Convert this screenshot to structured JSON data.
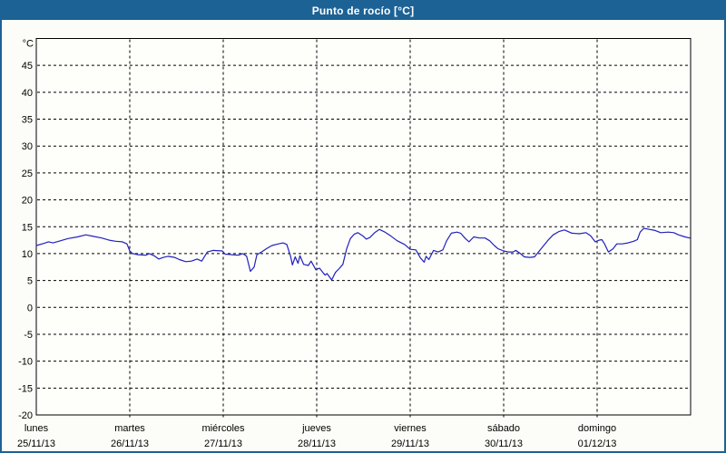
{
  "window": {
    "title": "Punto de rocío [°C]"
  },
  "colors": {
    "title_bar": "#1d6295",
    "title_text": "#ffffff",
    "page_border": "#1d6295",
    "background": "#fcfdf8",
    "plot_background": "#fefefb",
    "grid": "#000000",
    "axis_text": "#000000",
    "series": "#2121bd"
  },
  "chart_data": {
    "type": "line",
    "title": "Punto de rocío [°C]",
    "y_axis": {
      "unit_label": "°C",
      "min": -20,
      "max": 50,
      "grid_step": 5,
      "tick_labels": [
        45,
        40,
        35,
        30,
        25,
        20,
        15,
        10,
        5,
        0,
        -5,
        -10,
        -15,
        -20
      ]
    },
    "x_axis": {
      "days": [
        {
          "name": "lunes",
          "date": "25/11/13"
        },
        {
          "name": "martes",
          "date": "26/11/13"
        },
        {
          "name": "miércoles",
          "date": "27/11/13"
        },
        {
          "name": "jueves",
          "date": "28/11/13"
        },
        {
          "name": "viernes",
          "date": "29/11/13"
        },
        {
          "name": "sábado",
          "date": "30/11/13"
        },
        {
          "name": "domingo",
          "date": "01/12/13"
        }
      ]
    },
    "layout": {
      "grid": "dashed",
      "legend": false,
      "x_range_days": [
        0,
        7
      ]
    },
    "series": [
      {
        "name": "Punto de rocío",
        "color": "#2121bd",
        "points": [
          [
            0.0,
            11.5
          ],
          [
            0.08,
            11.9
          ],
          [
            0.13,
            12.2
          ],
          [
            0.18,
            12.0
          ],
          [
            0.24,
            12.3
          ],
          [
            0.34,
            12.8
          ],
          [
            0.44,
            13.1
          ],
          [
            0.53,
            13.5
          ],
          [
            0.61,
            13.2
          ],
          [
            0.7,
            12.9
          ],
          [
            0.78,
            12.5
          ],
          [
            0.85,
            12.3
          ],
          [
            0.92,
            12.2
          ],
          [
            0.97,
            11.8
          ],
          [
            1.0,
            10.5
          ],
          [
            1.03,
            10.0
          ],
          [
            1.09,
            9.8
          ],
          [
            1.17,
            9.7
          ],
          [
            1.21,
            10.0
          ],
          [
            1.26,
            9.6
          ],
          [
            1.31,
            9.0
          ],
          [
            1.36,
            9.3
          ],
          [
            1.41,
            9.5
          ],
          [
            1.48,
            9.3
          ],
          [
            1.53,
            8.9
          ],
          [
            1.6,
            8.5
          ],
          [
            1.66,
            8.6
          ],
          [
            1.72,
            9.0
          ],
          [
            1.77,
            8.6
          ],
          [
            1.83,
            10.3
          ],
          [
            1.89,
            10.6
          ],
          [
            1.99,
            10.5
          ],
          [
            2.02,
            9.9
          ],
          [
            2.09,
            9.8
          ],
          [
            2.16,
            9.7
          ],
          [
            2.21,
            10.0
          ],
          [
            2.25,
            9.5
          ],
          [
            2.29,
            6.7
          ],
          [
            2.33,
            7.5
          ],
          [
            2.36,
            9.8
          ],
          [
            2.41,
            10.3
          ],
          [
            2.46,
            10.9
          ],
          [
            2.52,
            11.5
          ],
          [
            2.59,
            11.8
          ],
          [
            2.64,
            12.0
          ],
          [
            2.68,
            11.7
          ],
          [
            2.72,
            9.5
          ],
          [
            2.74,
            7.9
          ],
          [
            2.77,
            9.4
          ],
          [
            2.8,
            8.2
          ],
          [
            2.82,
            9.6
          ],
          [
            2.86,
            8.0
          ],
          [
            2.91,
            7.8
          ],
          [
            2.94,
            8.6
          ],
          [
            2.99,
            7.0
          ],
          [
            3.03,
            7.3
          ],
          [
            3.07,
            6.4
          ],
          [
            3.09,
            6.0
          ],
          [
            3.11,
            6.3
          ],
          [
            3.16,
            5.1
          ],
          [
            3.2,
            6.5
          ],
          [
            3.24,
            7.2
          ],
          [
            3.28,
            8.0
          ],
          [
            3.32,
            10.9
          ],
          [
            3.36,
            12.8
          ],
          [
            3.4,
            13.6
          ],
          [
            3.44,
            13.9
          ],
          [
            3.5,
            13.2
          ],
          [
            3.53,
            12.7
          ],
          [
            3.57,
            13.0
          ],
          [
            3.62,
            13.9
          ],
          [
            3.67,
            14.5
          ],
          [
            3.73,
            14.0
          ],
          [
            3.79,
            13.3
          ],
          [
            3.86,
            12.4
          ],
          [
            3.94,
            11.7
          ],
          [
            4.0,
            10.8
          ],
          [
            4.06,
            10.7
          ],
          [
            4.11,
            9.2
          ],
          [
            4.15,
            8.4
          ],
          [
            4.17,
            9.5
          ],
          [
            4.2,
            8.9
          ],
          [
            4.25,
            10.6
          ],
          [
            4.3,
            10.3
          ],
          [
            4.35,
            10.7
          ],
          [
            4.39,
            12.4
          ],
          [
            4.44,
            13.8
          ],
          [
            4.5,
            14.0
          ],
          [
            4.54,
            13.8
          ],
          [
            4.59,
            12.8
          ],
          [
            4.63,
            12.2
          ],
          [
            4.68,
            13.1
          ],
          [
            4.74,
            12.9
          ],
          [
            4.8,
            12.9
          ],
          [
            4.85,
            12.4
          ],
          [
            4.9,
            11.5
          ],
          [
            4.94,
            10.9
          ],
          [
            5.0,
            10.5
          ],
          [
            5.05,
            10.3
          ],
          [
            5.1,
            10.3
          ],
          [
            5.13,
            10.6
          ],
          [
            5.18,
            10.0
          ],
          [
            5.22,
            9.4
          ],
          [
            5.28,
            9.3
          ],
          [
            5.33,
            9.4
          ],
          [
            5.4,
            10.9
          ],
          [
            5.47,
            12.4
          ],
          [
            5.53,
            13.5
          ],
          [
            5.59,
            14.1
          ],
          [
            5.65,
            14.4
          ],
          [
            5.73,
            13.8
          ],
          [
            5.81,
            13.7
          ],
          [
            5.88,
            13.9
          ],
          [
            5.93,
            13.3
          ],
          [
            5.98,
            12.2
          ],
          [
            6.02,
            12.5
          ],
          [
            6.05,
            12.6
          ],
          [
            6.08,
            11.8
          ],
          [
            6.12,
            10.3
          ],
          [
            6.17,
            10.9
          ],
          [
            6.21,
            11.8
          ],
          [
            6.27,
            11.8
          ],
          [
            6.33,
            12.0
          ],
          [
            6.39,
            12.3
          ],
          [
            6.43,
            12.6
          ],
          [
            6.46,
            14.0
          ],
          [
            6.5,
            14.7
          ],
          [
            6.56,
            14.5
          ],
          [
            6.62,
            14.3
          ],
          [
            6.68,
            13.9
          ],
          [
            6.76,
            14.0
          ],
          [
            6.82,
            13.9
          ],
          [
            6.87,
            13.5
          ],
          [
            6.94,
            13.1
          ],
          [
            6.99,
            12.9
          ]
        ]
      }
    ]
  }
}
